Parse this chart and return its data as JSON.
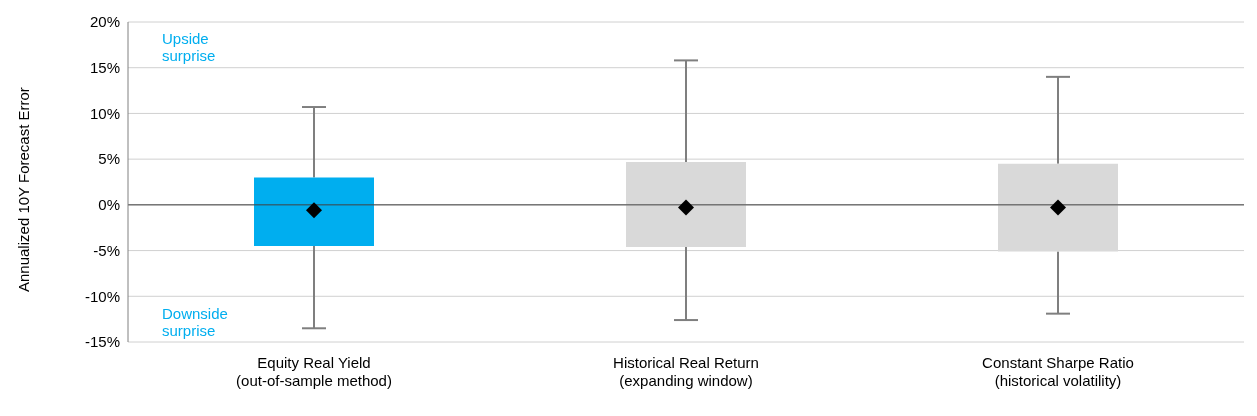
{
  "chart_data": {
    "type": "box",
    "ylabel": "Annualized 10Y Forecast Error",
    "categories": [
      "Equity Real Yield\n(out-of-sample method)",
      "Historical Real Return\n(expanding window)",
      "Constant Sharpe Ratio\n(historical volatility)"
    ],
    "boxes": [
      {
        "low": -13.5,
        "q1": -4.5,
        "median": -0.6,
        "q3": 3.0,
        "high": 10.7
      },
      {
        "low": -12.6,
        "q1": -4.6,
        "median": -0.3,
        "q3": 4.7,
        "high": 15.8
      },
      {
        "low": -11.9,
        "q1": -5.1,
        "median": -0.3,
        "q3": 4.5,
        "high": 14.0
      }
    ],
    "colors": [
      "#00aeef",
      "#d9d9d9",
      "#d9d9d9"
    ],
    "marker": "diamond",
    "ylim": [
      -15,
      20
    ],
    "yticks": [
      {
        "value": -15,
        "label": "-15%"
      },
      {
        "value": -10,
        "label": "-10%"
      },
      {
        "value": -5,
        "label": "-5%"
      },
      {
        "value": 0,
        "label": "0%"
      },
      {
        "value": 5,
        "label": "5%"
      },
      {
        "value": 10,
        "label": "10%"
      },
      {
        "value": 15,
        "label": "15%"
      },
      {
        "value": 20,
        "label": "20%"
      }
    ],
    "grid": "y",
    "ref_lines": [
      {
        "axis": "y",
        "value": 0,
        "color": "#404040"
      }
    ],
    "annotations": [
      "Upside\nsurprise",
      "Downside\nsurprise"
    ]
  }
}
